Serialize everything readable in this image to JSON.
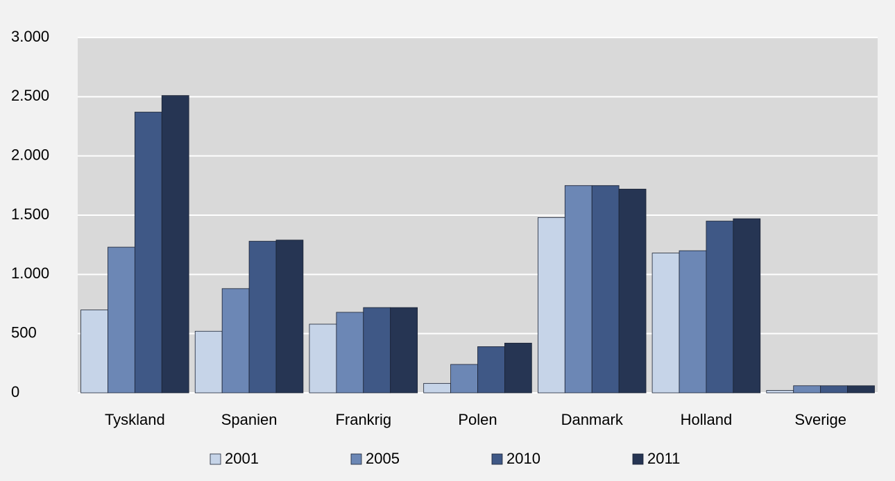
{
  "chart_data": {
    "type": "bar",
    "categories": [
      "Tyskland",
      "Spanien",
      "Frankrig",
      "Polen",
      "Danmark",
      "Holland",
      "Sverige"
    ],
    "series": [
      {
        "name": "2001",
        "color": "#c6d4e8",
        "values": [
          700,
          520,
          580,
          80,
          1480,
          1180,
          20
        ]
      },
      {
        "name": "2005",
        "color": "#6c87b5",
        "values": [
          1230,
          880,
          680,
          240,
          1750,
          1200,
          60
        ]
      },
      {
        "name": "2010",
        "color": "#3f5886",
        "values": [
          2370,
          1280,
          720,
          390,
          1750,
          1450,
          60
        ]
      },
      {
        "name": "2011",
        "color": "#263553",
        "values": [
          2510,
          1290,
          720,
          420,
          1720,
          1470,
          60
        ]
      }
    ],
    "ylim": [
      0,
      3000
    ],
    "yticks": [
      0,
      500,
      {
        "value": 1000,
        "label": "1.000"
      },
      {
        "value": 1500,
        "label": "1.500"
      },
      {
        "value": 2000,
        "label": "2.000"
      },
      {
        "value": 2500,
        "label": "2.500"
      },
      {
        "value": 3000,
        "label": "3.000"
      }
    ],
    "grid": true,
    "legend": "bottom"
  }
}
